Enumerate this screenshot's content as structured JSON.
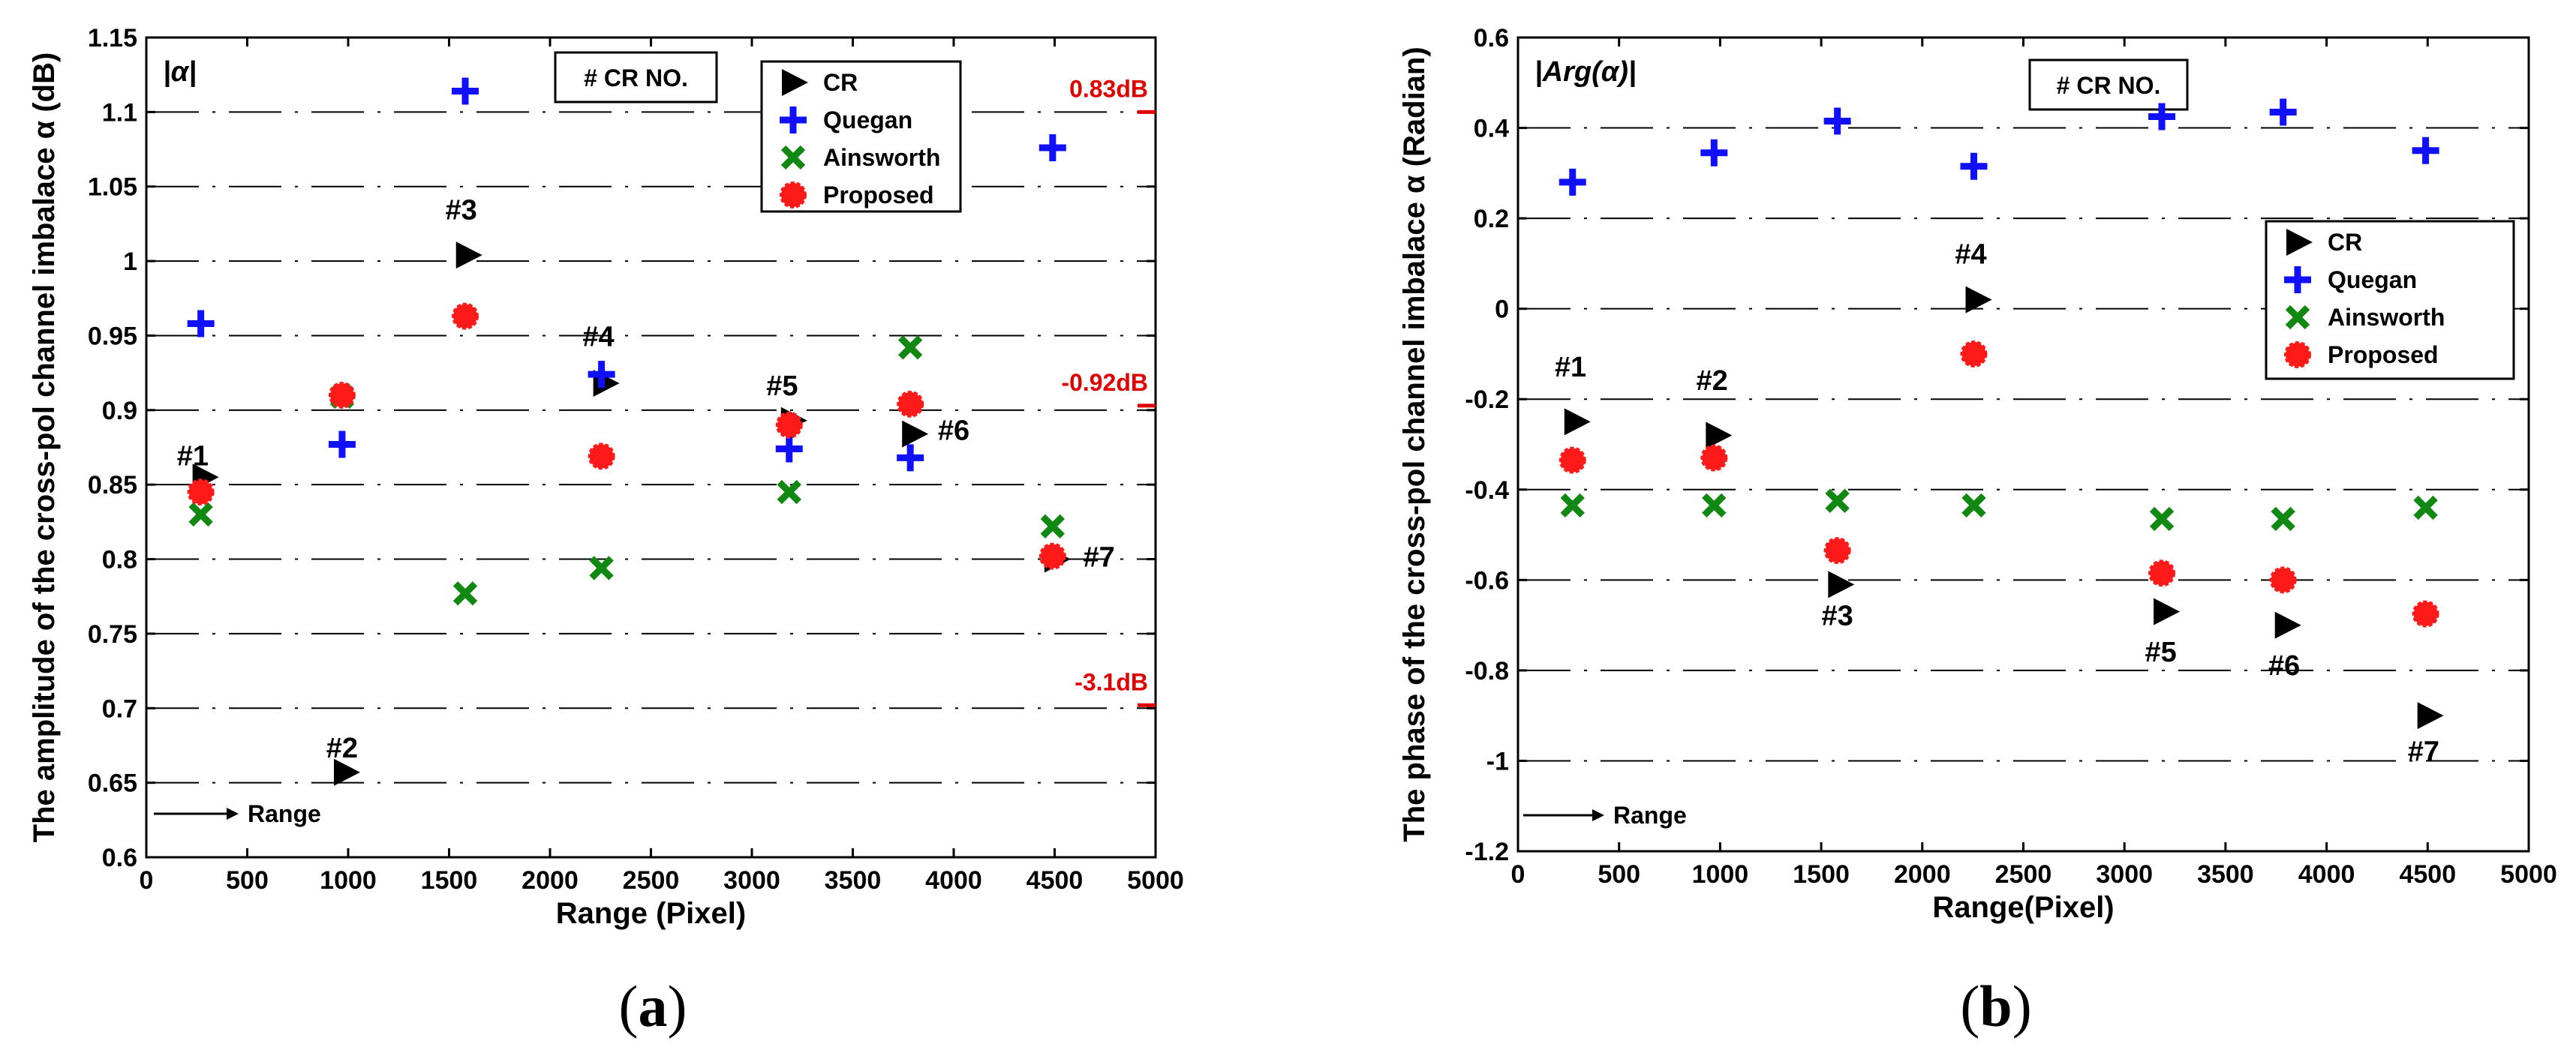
{
  "chart_data": [
    {
      "type": "scatter",
      "panel": "a",
      "caption_open": "(",
      "caption_letter": "a",
      "caption_close": ")",
      "title": "|α|",
      "xlabel": "Range (Pixel)",
      "ylabel": "The amplitude of the cross-pol channel imbalace α (dB)",
      "xlim": [
        0,
        5000
      ],
      "ylim": [
        0.6,
        1.15
      ],
      "xticks": [
        0,
        500,
        1000,
        1500,
        2000,
        2500,
        3000,
        3500,
        4000,
        4500,
        5000
      ],
      "yticks": [
        0.6,
        0.65,
        0.7,
        0.75,
        0.8,
        0.85,
        0.9,
        0.95,
        1,
        1.05,
        1.1,
        1.15
      ],
      "ytick_labels": [
        "0.6",
        "0.65",
        "0.7",
        "0.75",
        "0.8",
        "0.85",
        "0.9",
        "0.95",
        "1",
        "1.05",
        "1.1",
        "1.15"
      ],
      "grid_y": [
        0.65,
        0.7,
        0.75,
        0.8,
        0.85,
        0.9,
        0.95,
        1,
        1.05,
        1.1
      ],
      "box_label": "# CR NO.",
      "range_label": "Range",
      "legend": [
        "CR",
        "Quegan",
        "Ainsworth",
        "Proposed"
      ],
      "legend_position": "top-right",
      "db_marks": [
        {
          "y": 1.1,
          "label": "0.83dB"
        },
        {
          "y": 0.903,
          "label": "-0.92dB"
        },
        {
          "y": 0.702,
          "label": "-3.1dB"
        }
      ],
      "series": [
        {
          "name": "CR",
          "x": [
            285,
            985,
            1590,
            2270,
            3200,
            3800,
            4505
          ],
          "y": [
            0.855,
            0.657,
            1.004,
            0.918,
            0.893,
            0.884,
            0.8
          ]
        },
        {
          "name": "Quegan",
          "x": [
            270,
            970,
            1580,
            2255,
            3185,
            3785,
            4490
          ],
          "y": [
            0.958,
            0.877,
            1.114,
            0.924,
            0.874,
            0.868,
            1.076
          ]
        },
        {
          "name": "Ainsworth",
          "x": [
            270,
            970,
            1580,
            2255,
            3185,
            3785,
            4490
          ],
          "y": [
            0.83,
            0.909,
            0.777,
            0.794,
            0.845,
            0.942,
            0.822
          ]
        },
        {
          "name": "Proposed",
          "x": [
            270,
            970,
            1580,
            2255,
            3185,
            3785,
            4490
          ],
          "y": [
            0.845,
            0.91,
            0.963,
            0.869,
            0.89,
            0.904,
            0.802
          ]
        }
      ],
      "annotations": [
        {
          "text": "#1",
          "x": 230,
          "y": 0.863
        },
        {
          "text": "#2",
          "x": 970,
          "y": 0.667
        },
        {
          "text": "#3",
          "x": 1560,
          "y": 1.028
        },
        {
          "text": "#4",
          "x": 2240,
          "y": 0.943
        },
        {
          "text": "#5",
          "x": 3150,
          "y": 0.91
        },
        {
          "text": "#6",
          "x": 4000,
          "y": 0.88
        },
        {
          "text": "#7",
          "x": 4720,
          "y": 0.795
        }
      ]
    },
    {
      "type": "scatter",
      "panel": "b",
      "caption_open": "(",
      "caption_letter": "b",
      "caption_close": ")",
      "title": "|Arg(α)|",
      "xlabel": "Range(Pixel)",
      "ylabel": "The phase of the cross-pol channel imbalace α (Radian)",
      "xlim": [
        0,
        5000
      ],
      "ylim": [
        -1.2,
        0.6
      ],
      "xticks": [
        0,
        500,
        1000,
        1500,
        2000,
        2500,
        3000,
        3500,
        4000,
        4500,
        5000
      ],
      "yticks": [
        -1.2,
        -1,
        -0.8,
        -0.6,
        -0.4,
        -0.2,
        0,
        0.2,
        0.4,
        0.6
      ],
      "ytick_labels": [
        "-1.2",
        "-1",
        "-0.8",
        "-0.6",
        "-0.4",
        "-0.2",
        "0",
        "0.2",
        "0.4",
        "0.6"
      ],
      "grid_y": [
        -1,
        -0.8,
        -0.6,
        -0.4,
        -0.2,
        0,
        0.2,
        0.4
      ],
      "box_label": "# CR NO.",
      "range_label": "Range",
      "legend": [
        "CR",
        "Quegan",
        "Ainsworth",
        "Proposed"
      ],
      "legend_position": "right",
      "series": [
        {
          "name": "CR",
          "x": [
            285,
            985,
            1590,
            2270,
            3200,
            3800,
            4505
          ],
          "y": [
            -0.25,
            -0.28,
            -0.61,
            0.02,
            -0.67,
            -0.7,
            -0.9
          ]
        },
        {
          "name": "Quegan",
          "x": [
            270,
            970,
            1580,
            2255,
            3185,
            3785,
            4490
          ],
          "y": [
            0.28,
            0.345,
            0.415,
            0.315,
            0.425,
            0.435,
            0.35
          ]
        },
        {
          "name": "Ainsworth",
          "x": [
            270,
            970,
            1580,
            2255,
            3185,
            3785,
            4490
          ],
          "y": [
            -0.435,
            -0.435,
            -0.425,
            -0.435,
            -0.465,
            -0.465,
            -0.44
          ]
        },
        {
          "name": "Proposed",
          "x": [
            270,
            970,
            1580,
            2255,
            3185,
            3785,
            4490
          ],
          "y": [
            -0.335,
            -0.33,
            -0.535,
            -0.1,
            -0.585,
            -0.6,
            -0.675
          ]
        }
      ],
      "annotations": [
        {
          "text": "#1",
          "x": 260,
          "y": -0.15
        },
        {
          "text": "#2",
          "x": 960,
          "y": -0.18
        },
        {
          "text": "#3",
          "x": 1580,
          "y": -0.7
        },
        {
          "text": "#4",
          "x": 2240,
          "y": 0.1
        },
        {
          "text": "#5",
          "x": 3180,
          "y": -0.78
        },
        {
          "text": "#6",
          "x": 3790,
          "y": -0.81
        },
        {
          "text": "#7",
          "x": 4480,
          "y": -1.0
        }
      ]
    }
  ]
}
